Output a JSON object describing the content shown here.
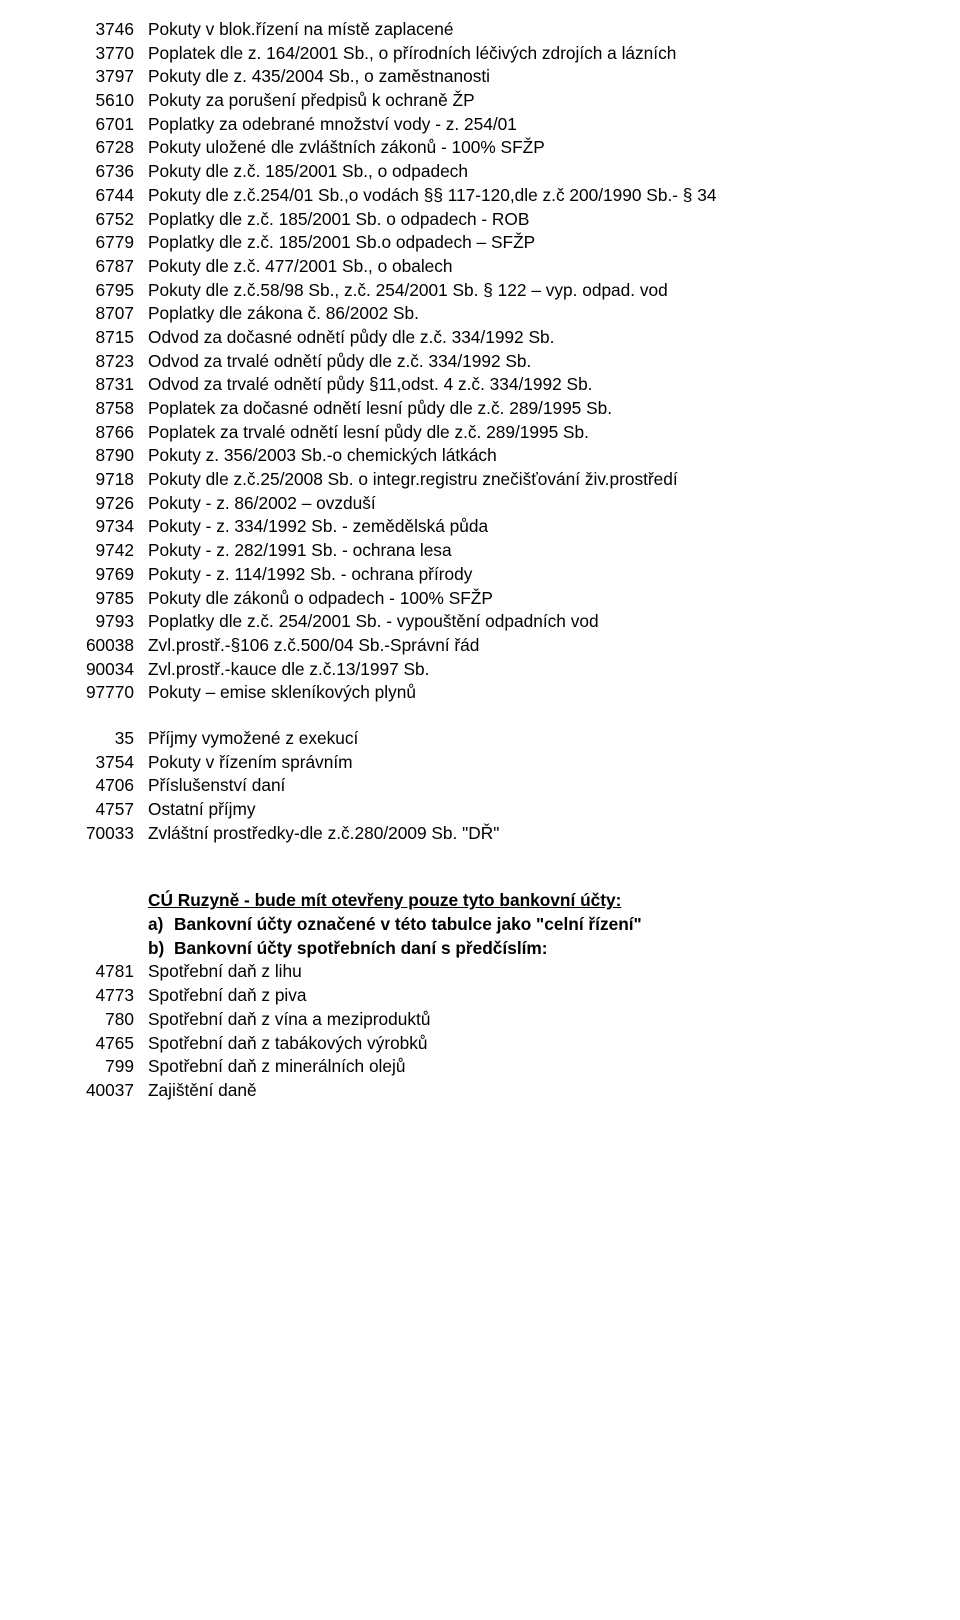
{
  "section1": [
    {
      "code": "3746",
      "desc": "Pokuty v blok.řízení na místě zaplacené"
    },
    {
      "code": "3770",
      "desc": "Poplatek dle z. 164/2001 Sb., o přírodních léčivých zdrojích a lázních"
    },
    {
      "code": "3797",
      "desc": "Pokuty dle z. 435/2004 Sb., o zaměstnanosti"
    },
    {
      "code": "5610",
      "desc": "Pokuty za porušení předpisů k ochraně ŽP"
    },
    {
      "code": "6701",
      "desc": "Poplatky za odebrané množství vody - z. 254/01"
    },
    {
      "code": "6728",
      "desc": "Pokuty uložené dle zvláštních zákonů - 100% SFŽP"
    },
    {
      "code": "6736",
      "desc": "Pokuty dle z.č. 185/2001 Sb., o odpadech"
    },
    {
      "code": "6744",
      "desc": "Pokuty dle z.č.254/01 Sb.,o vodách §§ 117-120,dle z.č 200/1990 Sb.- § 34"
    },
    {
      "code": "6752",
      "desc": "Poplatky dle z.č. 185/2001 Sb. o odpadech - ROB"
    },
    {
      "code": "6779",
      "desc": "Poplatky dle z.č. 185/2001 Sb.o odpadech – SFŽP"
    },
    {
      "code": "6787",
      "desc": "Pokuty dle z.č. 477/2001 Sb., o obalech"
    },
    {
      "code": "6795",
      "desc": "Pokuty dle z.č.58/98 Sb., z.č. 254/2001 Sb. § 122 – vyp. odpad. vod"
    },
    {
      "code": "8707",
      "desc": "Poplatky  dle zákona č. 86/2002 Sb."
    },
    {
      "code": "8715",
      "desc": "Odvod za dočasné odnětí půdy dle z.č. 334/1992 Sb."
    },
    {
      "code": "8723",
      "desc": "Odvod za trvalé odnětí půdy dle z.č. 334/1992 Sb."
    },
    {
      "code": "8731",
      "desc": "Odvod za trvalé odnětí půdy §11,odst. 4 z.č. 334/1992 Sb."
    },
    {
      "code": "8758",
      "desc": "Poplatek za dočasné odnětí lesní půdy dle  z.č. 289/1995 Sb."
    },
    {
      "code": "8766",
      "desc": "Poplatek za trvalé odnětí lesní půdy dle  z.č. 289/1995 Sb."
    },
    {
      "code": "8790",
      "desc": "Pokuty  z. 356/2003 Sb.-o chemických látkách"
    },
    {
      "code": "9718",
      "desc": "Pokuty dle z.č.25/2008 Sb. o integr.registru znečišťování živ.prostředí"
    },
    {
      "code": "9726",
      "desc": "Pokuty - z.  86/2002 – ovzduší"
    },
    {
      "code": "9734",
      "desc": "Pokuty - z. 334/1992 Sb. - zemědělská půda"
    },
    {
      "code": "9742",
      "desc": "Pokuty - z. 282/1991 Sb. - ochrana lesa"
    },
    {
      "code": "9769",
      "desc": "Pokuty - z. 114/1992 Sb. - ochrana přírody"
    },
    {
      "code": "9785",
      "desc": "Pokuty dle zákonů o odpadech - 100% SFŽP"
    },
    {
      "code": "9793",
      "desc": "Poplatky dle z.č. 254/2001 Sb. - vypouštění odpadních vod"
    },
    {
      "code": "60038",
      "desc": "Zvl.prostř.-§106 z.č.500/04 Sb.-Správní řád"
    },
    {
      "code": "90034",
      "desc": "Zvl.prostř.-kauce dle z.č.13/1997 Sb."
    },
    {
      "code": "97770",
      "desc": "Pokuty – emise skleníkových plynů"
    }
  ],
  "section2": [
    {
      "code": "35",
      "desc": "Příjmy vymožené z exekucí"
    },
    {
      "code": "3754",
      "desc": "Pokuty v řízením správním"
    },
    {
      "code": "4706",
      "desc": "Příslušenství  daní"
    },
    {
      "code": "4757",
      "desc": "Ostatní příjmy"
    },
    {
      "code": "70033",
      "desc": "Zvláštní prostředky-dle z.č.280/2009 Sb. \"DŘ\""
    }
  ],
  "note": {
    "title": "CÚ Ruzyně -  bude mít otevřeny pouze tyto bankovní účty:",
    "a_label": "a)",
    "a_text": "Bankovní účty označené v této tabulce jako \"celní řízení\"",
    "b_label": "b)",
    "b_text": "Bankovní účty spotřebních daní s předčíslím:"
  },
  "section3": [
    {
      "code": "4781",
      "desc": "Spotřební daň z lihu"
    },
    {
      "code": "4773",
      "desc": "Spotřební daň z piva"
    },
    {
      "code": "780",
      "desc": "Spotřební daň z vína a meziproduktů"
    },
    {
      "code": "4765",
      "desc": "Spotřební daň z tabákových výrobků"
    },
    {
      "code": "799",
      "desc": "Spotřební daň z minerálních olejů"
    },
    {
      "code": "40037",
      "desc": "Zajištění daně"
    }
  ]
}
